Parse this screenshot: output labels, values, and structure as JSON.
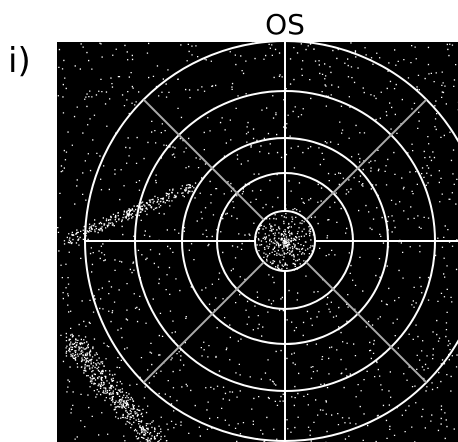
{
  "title": "OS",
  "panel_label": "i)"
}
